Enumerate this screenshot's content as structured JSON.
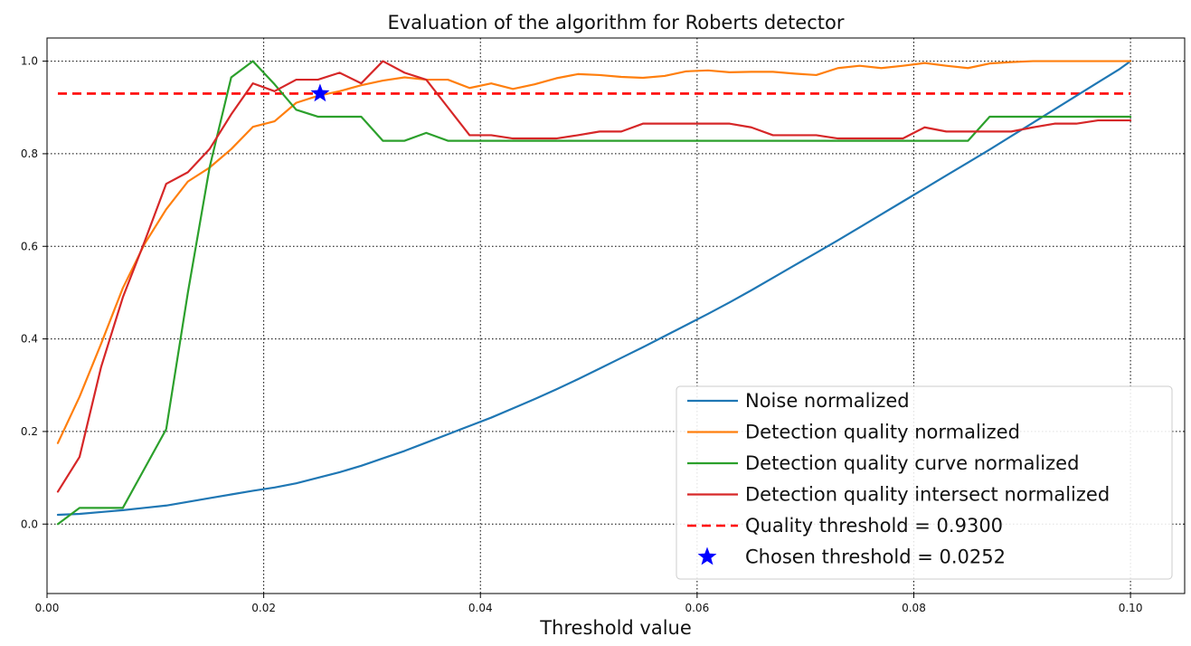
{
  "chart_data": {
    "type": "line",
    "title": "Evaluation of the algorithm for Roberts detector",
    "xlabel": "Threshold value",
    "ylabel": "",
    "xlim": [
      0.0,
      0.105
    ],
    "ylim": [
      -0.15,
      1.05
    ],
    "xticks": [
      0.0,
      0.02,
      0.04,
      0.06,
      0.08,
      0.1
    ],
    "xtick_labels": [
      "0.00",
      "0.02",
      "0.04",
      "0.06",
      "0.08",
      "0.10"
    ],
    "yticks": [
      0.0,
      0.2,
      0.4,
      0.6,
      0.8,
      1.0
    ],
    "ytick_labels": [
      "0.0",
      "0.2",
      "0.4",
      "0.6",
      "0.8",
      "1.0"
    ],
    "grid": true,
    "legend_position": "bottom-right",
    "x": [
      0.001,
      0.003,
      0.005,
      0.007,
      0.009,
      0.011,
      0.013,
      0.015,
      0.017,
      0.019,
      0.021,
      0.023,
      0.025,
      0.027,
      0.029,
      0.031,
      0.033,
      0.035,
      0.037,
      0.039,
      0.041,
      0.043,
      0.045,
      0.047,
      0.049,
      0.051,
      0.053,
      0.055,
      0.057,
      0.059,
      0.061,
      0.063,
      0.065,
      0.067,
      0.069,
      0.071,
      0.073,
      0.075,
      0.077,
      0.079,
      0.081,
      0.083,
      0.085,
      0.087,
      0.089,
      0.091,
      0.093,
      0.095,
      0.097,
      0.099,
      0.1
    ],
    "series": [
      {
        "name": "Noise normalized",
        "color": "#1f77b4",
        "style": "solid",
        "values": [
          0.02,
          0.022,
          0.026,
          0.03,
          0.035,
          0.04,
          0.048,
          0.056,
          0.064,
          0.072,
          0.079,
          0.088,
          0.1,
          0.112,
          0.126,
          0.142,
          0.158,
          0.176,
          0.194,
          0.212,
          0.23,
          0.25,
          0.27,
          0.291,
          0.313,
          0.336,
          0.359,
          0.382,
          0.406,
          0.43,
          0.454,
          0.479,
          0.505,
          0.532,
          0.559,
          0.586,
          0.613,
          0.641,
          0.669,
          0.697,
          0.725,
          0.753,
          0.781,
          0.809,
          0.838,
          0.867,
          0.896,
          0.925,
          0.954,
          0.983,
          1.0
        ]
      },
      {
        "name": "Detection quality normalized",
        "color": "#ff7f0e",
        "style": "solid",
        "values": [
          0.175,
          0.275,
          0.39,
          0.51,
          0.605,
          0.68,
          0.74,
          0.77,
          0.81,
          0.858,
          0.87,
          0.91,
          0.925,
          0.935,
          0.948,
          0.958,
          0.965,
          0.96,
          0.96,
          0.942,
          0.952,
          0.94,
          0.95,
          0.963,
          0.972,
          0.97,
          0.966,
          0.964,
          0.968,
          0.978,
          0.98,
          0.976,
          0.977,
          0.977,
          0.973,
          0.97,
          0.985,
          0.99,
          0.985,
          0.99,
          0.996,
          0.99,
          0.985,
          0.995,
          0.998,
          1.0,
          1.0,
          1.0,
          1.0,
          1.0,
          1.0
        ]
      },
      {
        "name": "Detection quality curve normalized",
        "color": "#2ca02c",
        "style": "solid",
        "values": [
          0.0,
          0.035,
          0.035,
          0.035,
          0.12,
          0.205,
          0.5,
          0.77,
          0.965,
          1.0,
          0.95,
          0.895,
          0.88,
          0.88,
          0.88,
          0.828,
          0.828,
          0.845,
          0.828,
          0.828,
          0.828,
          0.828,
          0.828,
          0.828,
          0.828,
          0.828,
          0.828,
          0.828,
          0.828,
          0.828,
          0.828,
          0.828,
          0.828,
          0.828,
          0.828,
          0.828,
          0.828,
          0.828,
          0.828,
          0.828,
          0.828,
          0.828,
          0.828,
          0.88,
          0.88,
          0.88,
          0.88,
          0.88,
          0.88,
          0.88,
          0.88
        ]
      },
      {
        "name": "Detection quality intersect normalized",
        "color": "#d62728",
        "style": "solid",
        "values": [
          0.07,
          0.145,
          0.34,
          0.49,
          0.61,
          0.735,
          0.76,
          0.81,
          0.885,
          0.952,
          0.935,
          0.96,
          0.96,
          0.975,
          0.952,
          1.0,
          0.975,
          0.96,
          0.9,
          0.84,
          0.84,
          0.833,
          0.833,
          0.833,
          0.84,
          0.848,
          0.848,
          0.865,
          0.865,
          0.865,
          0.865,
          0.865,
          0.857,
          0.84,
          0.84,
          0.84,
          0.833,
          0.833,
          0.833,
          0.833,
          0.857,
          0.848,
          0.848,
          0.848,
          0.848,
          0.857,
          0.865,
          0.865,
          0.872,
          0.872,
          0.872
        ]
      }
    ],
    "hlines": [
      {
        "name": "Quality threshold = 0.9300",
        "y": 0.93,
        "color": "#ff0000",
        "style": "dashed"
      }
    ],
    "markers": [
      {
        "name": "Chosen threshold = 0.0252",
        "x": 0.0252,
        "y": 0.93,
        "color": "#0000ff",
        "shape": "star"
      }
    ]
  }
}
